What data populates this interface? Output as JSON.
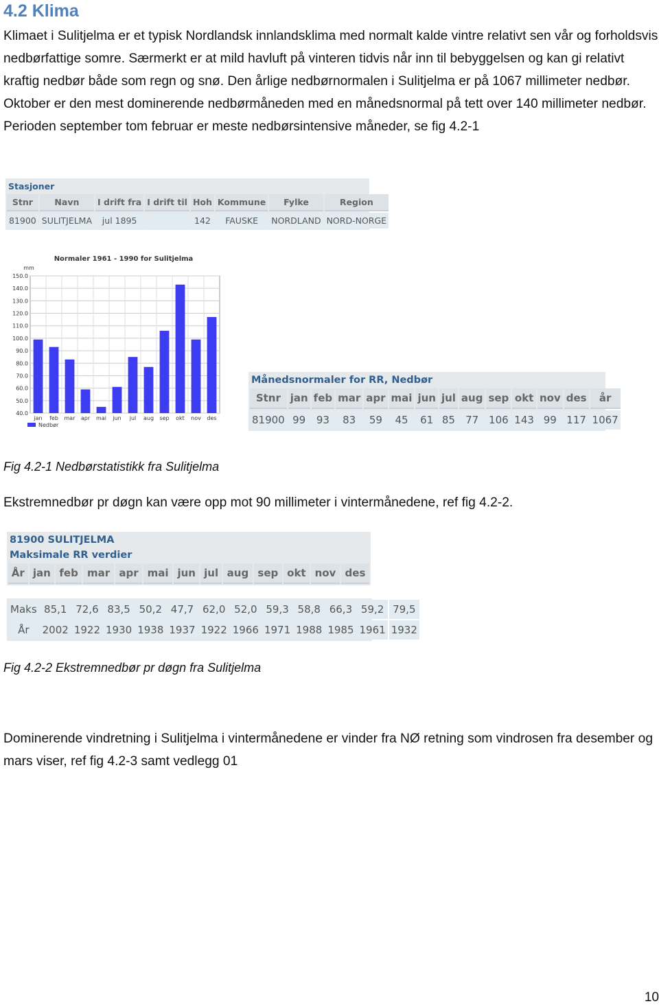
{
  "heading": "4.2 Klima",
  "intro": "Klimaet i Sulitjelma er et typisk Nordlandsk innlandsklima med normalt kalde vintre relativt sen vår og forholdsvis nedbørfattige somre. Særmerkt er at mild havluft på vinteren tidvis når inn til bebyggelsen og kan gi relativt kraftig nedbør både som regn og snø. Den årlige nedbørnormalen i Sulitjelma er på 1067 millimeter nedbør. Oktober er den mest dominerende nedbørmåneden med en månedsnormal på tett over 140 millimeter nedbør. Perioden september tom februar er meste nedbørsintensive måneder, se fig 4.2-1",
  "station_table": {
    "title": "Stasjoner",
    "header": [
      "Stnr",
      "Navn",
      "I drift fra",
      "I drift til",
      "Hoh",
      "Kommune",
      "Fylke",
      "Region"
    ],
    "rows": [
      [
        "81900",
        "SULITJELMA",
        "jul 1895",
        null,
        "142",
        "FAUSKE",
        "NORDLAND",
        "NORD-NORGE"
      ]
    ]
  },
  "chart_data": {
    "type": "bar",
    "title": "Normaler 1961 - 1990 for Sulitjelma",
    "y_unit": "mm",
    "categories": [
      "jan",
      "feb",
      "mar",
      "apr",
      "mai",
      "jun",
      "jul",
      "aug",
      "sep",
      "okt",
      "nov",
      "des"
    ],
    "series": [
      {
        "name": "Nedbør",
        "color": "#3c3cf0",
        "values": [
          99,
          93,
          83,
          59,
          45,
          61,
          85,
          77,
          106,
          143,
          99,
          117
        ]
      }
    ],
    "ylim": [
      40,
      150
    ],
    "yticks": [
      {
        "value": 40,
        "label": "40.0"
      },
      {
        "value": 50,
        "label": "50.0"
      },
      {
        "value": 60,
        "label": "60.0"
      },
      {
        "value": 70,
        "label": "70.0"
      },
      {
        "value": 80,
        "label": "80.0"
      },
      {
        "value": 90,
        "label": "90.0"
      },
      {
        "value": 100,
        "label": "100.0"
      },
      {
        "value": 110,
        "label": "110.0"
      },
      {
        "value": 120,
        "label": "120.0"
      },
      {
        "value": 130,
        "label": "130.0"
      },
      {
        "value": 140,
        "label": "140.0"
      },
      {
        "value": 150,
        "label": "150.0"
      }
    ],
    "grid": true,
    "legend": "bottom-left"
  },
  "normals_table": {
    "title": "Månedsnormaler for RR, Nedbør",
    "header": [
      "Stnr",
      "jan",
      "feb",
      "mar",
      "apr",
      "mai",
      "jun",
      "jul",
      "aug",
      "sep",
      "okt",
      "nov",
      "des",
      "år"
    ],
    "rows": [
      [
        "81900",
        "99",
        "93",
        "83",
        "59",
        "45",
        "61",
        "85",
        "77",
        "106",
        "143",
        "99",
        "117",
        "1067"
      ]
    ]
  },
  "caption_1": "Fig 4.2-1 Nedbørstatistikk fra Sulitjelma",
  "extreme_text": "Ekstremnedbør pr døgn kan være opp mot 90 millimeter i vintermånedene, ref fig 4.2-2.",
  "max_table": {
    "title": "81900 SULITJELMA",
    "subtitle": "Maksimale RR verdier",
    "header": [
      "År",
      "jan",
      "feb",
      "mar",
      "apr",
      "mai",
      "jun",
      "jul",
      "aug",
      "sep",
      "okt",
      "nov",
      "des"
    ],
    "rows": [
      [
        "Maks",
        "85,1",
        "72,6",
        "83,5",
        "50,2",
        "47,7",
        "62,0",
        "52,0",
        "59,3",
        "58,8",
        "66,3",
        "59,2",
        "79,5"
      ],
      [
        "År",
        "2002",
        "1922",
        "1930",
        "1938",
        "1937",
        "1922",
        "1966",
        "1971",
        "1988",
        "1985",
        "1961",
        "1932"
      ]
    ]
  },
  "caption_2": "Fig 4.2-2 Ekstremnedbør pr døgn fra Sulitjelma",
  "wind_text": "Dominerende vindretning i Sulitjelma i vintermånedene er vinder fra NØ retning som vindrosen fra desember og mars viser, ref fig 4.2-3 samt vedlegg 01",
  "page_number": "10"
}
